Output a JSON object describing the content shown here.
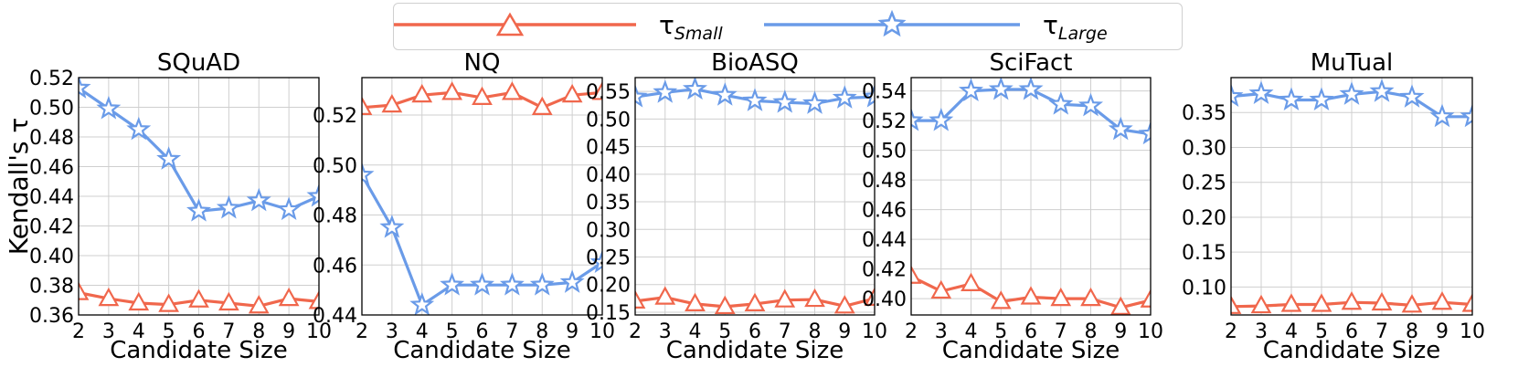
{
  "legend": {
    "small_symbol": "τ",
    "small_sub": "Small",
    "large_symbol": "τ",
    "large_sub": "Large"
  },
  "colors": {
    "small": "#f0674c",
    "large": "#6a9be8",
    "grid": "#cfcfcf"
  },
  "ylabel": "Kendall's τ",
  "chart_data": [
    {
      "type": "line",
      "title": "SQuAD",
      "xlabel": "Candidate Size",
      "x": [
        2,
        3,
        4,
        5,
        6,
        7,
        8,
        9,
        10
      ],
      "xlim": [
        2,
        10
      ],
      "ylim": [
        0.36,
        0.52
      ],
      "yticks": [
        0.36,
        0.38,
        0.4,
        0.42,
        0.44,
        0.46,
        0.48,
        0.5,
        0.52
      ],
      "ytick_labels": [
        "0.36",
        "0.38",
        "0.40",
        "0.42",
        "0.44",
        "0.46",
        "0.48",
        "0.50",
        "0.52"
      ],
      "series": [
        {
          "name": "τSmall",
          "marker": "triangle",
          "values": [
            0.375,
            0.371,
            0.368,
            0.367,
            0.37,
            0.368,
            0.366,
            0.371,
            0.369
          ]
        },
        {
          "name": "τLarge",
          "marker": "star",
          "values": [
            0.513,
            0.499,
            0.485,
            0.465,
            0.43,
            0.432,
            0.437,
            0.431,
            0.44
          ]
        }
      ]
    },
    {
      "type": "line",
      "title": "NQ",
      "xlabel": "Candidate Size",
      "x": [
        2,
        3,
        4,
        5,
        6,
        7,
        8,
        9,
        10
      ],
      "xlim": [
        2,
        10
      ],
      "ylim": [
        0.44,
        0.535
      ],
      "yticks": [
        0.44,
        0.46,
        0.48,
        0.5,
        0.52
      ],
      "ytick_labels": [
        "0.44",
        "0.46",
        "0.48",
        "0.50",
        "0.52"
      ],
      "series": [
        {
          "name": "τSmall",
          "marker": "triangle",
          "values": [
            0.523,
            0.524,
            0.528,
            0.529,
            0.527,
            0.529,
            0.523,
            0.528,
            0.529
          ]
        },
        {
          "name": "τLarge",
          "marker": "star",
          "values": [
            0.496,
            0.475,
            0.444,
            0.452,
            0.452,
            0.452,
            0.452,
            0.453,
            0.461
          ]
        }
      ]
    },
    {
      "type": "line",
      "title": "BioASQ",
      "xlabel": "Candidate Size",
      "x": [
        2,
        3,
        4,
        5,
        6,
        7,
        8,
        9,
        10
      ],
      "xlim": [
        2,
        10
      ],
      "ylim": [
        0.145,
        0.575
      ],
      "yticks": [
        0.15,
        0.2,
        0.25,
        0.3,
        0.35,
        0.4,
        0.45,
        0.5,
        0.55
      ],
      "ytick_labels": [
        "0.15",
        "0.20",
        "0.25",
        "0.30",
        "0.35",
        "0.40",
        "0.45",
        "0.50",
        "0.55"
      ],
      "series": [
        {
          "name": "τSmall",
          "marker": "triangle",
          "values": [
            0.17,
            0.177,
            0.165,
            0.16,
            0.165,
            0.172,
            0.173,
            0.161,
            0.175
          ]
        },
        {
          "name": "τLarge",
          "marker": "star",
          "values": [
            0.54,
            0.548,
            0.554,
            0.543,
            0.533,
            0.53,
            0.528,
            0.538,
            0.54
          ]
        }
      ]
    },
    {
      "type": "line",
      "title": "SciFact",
      "xlabel": "Candidate Size",
      "x": [
        2,
        3,
        4,
        5,
        6,
        7,
        8,
        9,
        10
      ],
      "xlim": [
        2,
        10
      ],
      "ylim": [
        0.389,
        0.549
      ],
      "yticks": [
        0.4,
        0.42,
        0.44,
        0.46,
        0.48,
        0.5,
        0.52,
        0.54
      ],
      "ytick_labels": [
        "0.40",
        "0.42",
        "0.44",
        "0.46",
        "0.48",
        "0.50",
        "0.52",
        "0.54"
      ],
      "series": [
        {
          "name": "τSmall",
          "marker": "triangle",
          "values": [
            0.415,
            0.405,
            0.41,
            0.398,
            0.401,
            0.4,
            0.4,
            0.394,
            0.399
          ]
        },
        {
          "name": "τLarge",
          "marker": "star",
          "values": [
            0.52,
            0.52,
            0.54,
            0.541,
            0.541,
            0.531,
            0.53,
            0.514,
            0.511
          ]
        }
      ]
    },
    {
      "type": "line",
      "title": "MuTual",
      "xlabel": "Candidate Size",
      "x": [
        2,
        3,
        4,
        5,
        6,
        7,
        8,
        9,
        10
      ],
      "xlim": [
        2,
        10
      ],
      "ylim": [
        0.06,
        0.4
      ],
      "yticks": [
        0.1,
        0.15,
        0.2,
        0.25,
        0.3,
        0.35
      ],
      "ytick_labels": [
        "0.10",
        "0.15",
        "0.20",
        "0.25",
        "0.30",
        "0.35"
      ],
      "series": [
        {
          "name": "τSmall",
          "marker": "triangle",
          "values": [
            0.072,
            0.073,
            0.075,
            0.075,
            0.078,
            0.077,
            0.074,
            0.078,
            0.075
          ]
        },
        {
          "name": "τLarge",
          "marker": "star",
          "values": [
            0.373,
            0.377,
            0.368,
            0.368,
            0.376,
            0.38,
            0.372,
            0.344,
            0.344
          ]
        }
      ]
    }
  ]
}
